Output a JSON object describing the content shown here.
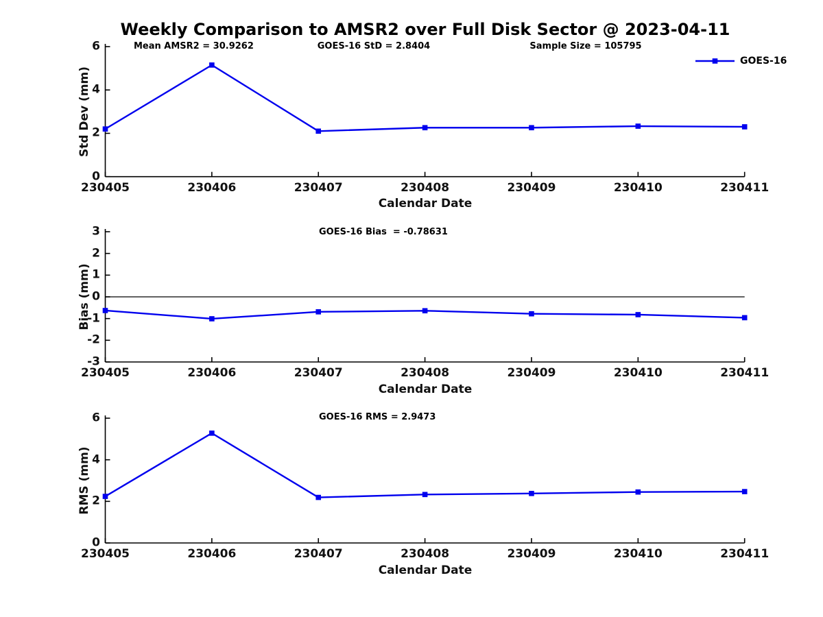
{
  "title": "Weekly Comparison to AMSR2 over Full Disk Sector @ 2023-04-11",
  "legend": {
    "label": "GOES-16"
  },
  "colors": {
    "line": "#0000EE",
    "axis": "#000000",
    "text": "#111111",
    "background": "#FFFFFF"
  },
  "chart_data": [
    {
      "type": "line",
      "title": "",
      "categories": [
        "230405",
        "230406",
        "230407",
        "230408",
        "230409",
        "230410",
        "230411"
      ],
      "series": [
        {
          "name": "GOES-16",
          "values": [
            2.2,
            5.15,
            2.1,
            2.26,
            2.26,
            2.33,
            2.3
          ]
        }
      ],
      "annotations": [
        "Mean AMSR2 = 30.9262",
        "GOES-16 StD = 2.8404",
        "Sample Size = 105795"
      ],
      "xlabel": "Calendar Date",
      "ylabel": "Std Dev (mm)",
      "ylim": [
        0,
        6
      ],
      "yticks": [
        0,
        2,
        4,
        6
      ],
      "grid": false,
      "zero_line": false,
      "legend": "GOES-16",
      "legend_position": "top-right",
      "marker": "square"
    },
    {
      "type": "line",
      "title": "",
      "categories": [
        "230405",
        "230406",
        "230407",
        "230408",
        "230409",
        "230410",
        "230411"
      ],
      "series": [
        {
          "name": "GOES-16",
          "values": [
            -0.63,
            -1.01,
            -0.69,
            -0.64,
            -0.78,
            -0.82,
            -0.96
          ]
        }
      ],
      "annotation": "GOES-16 Bias  = -0.78631",
      "xlabel": "Calendar Date",
      "ylabel": "Bias (mm)",
      "ylim": [
        -3,
        3
      ],
      "yticks": [
        -3,
        -2,
        -1,
        0,
        1,
        2,
        3
      ],
      "grid": false,
      "zero_line": true,
      "marker": "square"
    },
    {
      "type": "line",
      "title": "",
      "categories": [
        "230405",
        "230406",
        "230407",
        "230408",
        "230409",
        "230410",
        "230411"
      ],
      "series": [
        {
          "name": "GOES-16",
          "values": [
            2.24,
            5.28,
            2.19,
            2.33,
            2.38,
            2.45,
            2.47
          ]
        }
      ],
      "annotation": "GOES-16 RMS = 2.9473",
      "xlabel": "Calendar Date",
      "ylabel": "RMS (mm)",
      "ylim": [
        0,
        6
      ],
      "yticks": [
        0,
        2,
        4,
        6
      ],
      "grid": false,
      "zero_line": false,
      "marker": "square"
    }
  ]
}
